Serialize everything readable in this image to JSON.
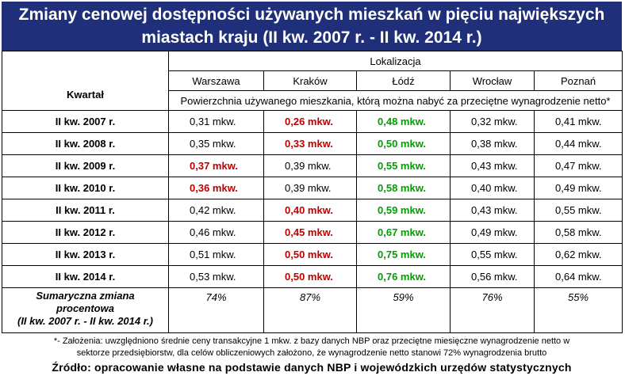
{
  "title_line1": "Zmiany cenowej dostępności używanych mieszkań w pięciu największych",
  "title_line2": "miastach kraju (II kw. 2007 r. - II kw. 2014 r.)",
  "lokalizacja_label": "Lokalizacja",
  "kwartal_label": "Kwartał",
  "subheader": "Powierzchnia używanego mieszkania, którą można nabyć za przeciętne wynagrodzenie netto*",
  "cities": [
    "Warszawa",
    "Kraków",
    "Łódź",
    "Wrocław",
    "Poznań"
  ],
  "summary_label_line1": "Sumaryczna zmiana",
  "summary_label_line2": "procentowa",
  "summary_label_line3": "(II kw. 2007 r. - II kw. 2014 r.)",
  "colors": {
    "header_bg": "#1f2f79",
    "min_red": "#c00000",
    "max_green": "#00a000"
  },
  "chart_data": {
    "type": "table",
    "unit": "mkw.",
    "columns": [
      "Warszawa",
      "Kraków",
      "Łódź",
      "Wrocław",
      "Poznań"
    ],
    "rows": [
      {
        "label": "II kw. 2007 r.",
        "values": [
          "0,31 mkw.",
          "0,26 mkw.",
          "0,48 mkw.",
          "0,32 mkw.",
          "0,41 mkw."
        ],
        "styles": [
          "",
          "red",
          "green",
          "",
          ""
        ]
      },
      {
        "label": "II kw. 2008 r.",
        "values": [
          "0,35 mkw.",
          "0,33 mkw.",
          "0,50 mkw.",
          "0,38 mkw.",
          "0,44 mkw."
        ],
        "styles": [
          "",
          "red",
          "green",
          "",
          ""
        ]
      },
      {
        "label": "II kw. 2009 r.",
        "values": [
          "0,37 mkw.",
          "0,39 mkw.",
          "0,55 mkw.",
          "0,43 mkw.",
          "0,47 mkw."
        ],
        "styles": [
          "red",
          "",
          "green",
          "",
          ""
        ]
      },
      {
        "label": "II kw. 2010 r.",
        "values": [
          "0,36 mkw.",
          "0,39 mkw.",
          "0,58 mkw.",
          "0,40 mkw.",
          "0,49 mkw."
        ],
        "styles": [
          "red",
          "",
          "green",
          "",
          ""
        ]
      },
      {
        "label": "II kw. 2011 r.",
        "values": [
          "0,42 mkw.",
          "0,40 mkw.",
          "0,59 mkw.",
          "0,43 mkw.",
          "0,55 mkw."
        ],
        "styles": [
          "",
          "red",
          "green",
          "",
          ""
        ]
      },
      {
        "label": "II kw. 2012 r.",
        "values": [
          "0,46 mkw.",
          "0,45 mkw.",
          "0,67 mkw.",
          "0,49 mkw.",
          "0,58 mkw."
        ],
        "styles": [
          "",
          "red",
          "green",
          "",
          ""
        ]
      },
      {
        "label": "II kw. 2013 r.",
        "values": [
          "0,51 mkw.",
          "0,50 mkw.",
          "0,75 mkw.",
          "0,55 mkw.",
          "0,62 mkw."
        ],
        "styles": [
          "",
          "red",
          "green",
          "",
          ""
        ]
      },
      {
        "label": "II kw. 2014 r.",
        "values": [
          "0,53 mkw.",
          "0,50 mkw.",
          "0,76 mkw.",
          "0,56 mkw.",
          "0,64 mkw."
        ],
        "styles": [
          "",
          "red",
          "green",
          "",
          ""
        ]
      }
    ],
    "summary": [
      "74%",
      "87%",
      "59%",
      "76%",
      "55%"
    ]
  },
  "footnote_line1": "*- Założenia: uwzględniono średnie ceny transakcyjne 1 mkw. z bazy danych NBP oraz przeciętne miesięczne wynagrodzenie netto w",
  "footnote_line2": "sektorze przedsiębiorstw, dla celów obliczeniowych założono, że wynagrodzenie netto stanowi 72% wynagrodzenia brutto",
  "source": "Źródło: opracowanie własne na podstawie danych NBP i wojewódzkich urzędów statystycznych"
}
